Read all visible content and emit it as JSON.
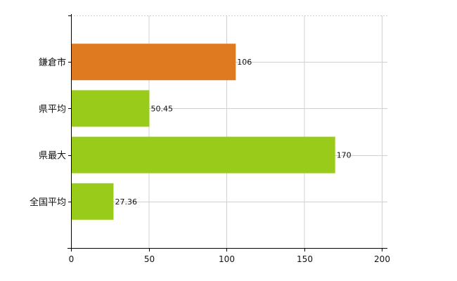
{
  "chart_data": {
    "type": "bar",
    "orientation": "horizontal",
    "title": "",
    "xlabel": "",
    "ylabel": "",
    "categories": [
      "鎌倉市",
      "県平均",
      "県最大",
      "全国平均"
    ],
    "values": [
      106,
      50.45,
      170,
      27.36
    ],
    "value_labels": [
      "106",
      "50.45",
      "170",
      "27.36"
    ],
    "bar_colors": [
      "#E07A20",
      "#99CC1A",
      "#99CC1A",
      "#99CC1A"
    ],
    "xlim": [
      0,
      200
    ],
    "x_ticks": [
      0,
      50,
      100,
      150,
      200
    ],
    "grid": true,
    "legend": "none"
  },
  "colors": {
    "highlight": "#E07A20",
    "default": "#99CC1A",
    "grid": "#D0D0D0",
    "axis": "#000000"
  }
}
